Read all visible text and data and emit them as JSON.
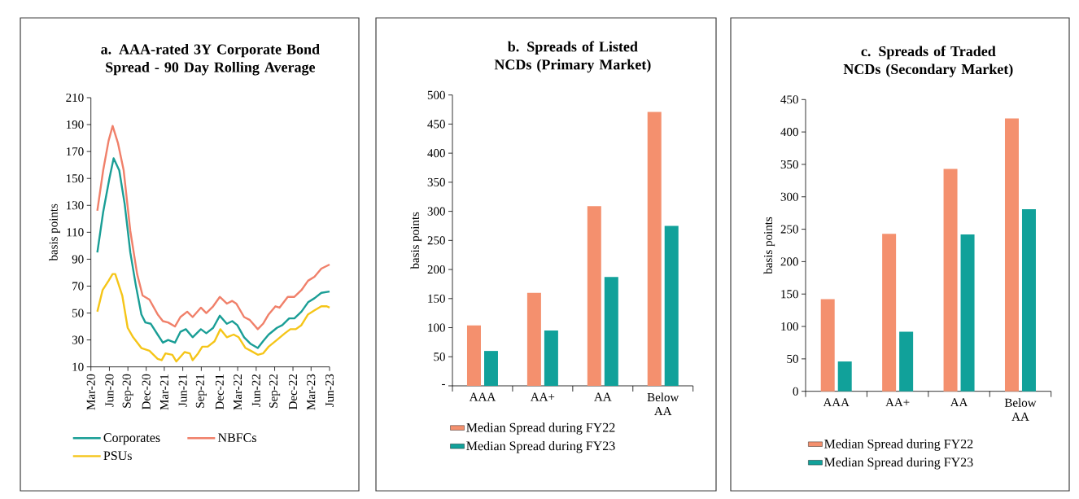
{
  "chart_data": [
    {
      "type": "line",
      "title": "a. AAA-rated 3Y Corporate Bond Spread - 90 Day Rolling Average",
      "ylabel": "basis points",
      "xlim": [
        "2020-03",
        "2023-06"
      ],
      "ylim": [
        10,
        210
      ],
      "yticks": [
        10,
        30,
        50,
        70,
        90,
        110,
        130,
        150,
        170,
        190,
        210
      ],
      "xticks": [
        {
          "value": "2020-03",
          "label": "Mar-20"
        },
        {
          "value": "2020-06",
          "label": "Jun-20"
        },
        {
          "value": "2020-09",
          "label": "Sep-20"
        },
        {
          "value": "2020-12",
          "label": "Dec-20"
        },
        {
          "value": "2021-03",
          "label": "Mar-21"
        },
        {
          "value": "2021-06",
          "label": "Jun-21"
        },
        {
          "value": "2021-09",
          "label": "Sep-21"
        },
        {
          "value": "2021-12",
          "label": "Dec-21"
        },
        {
          "value": "2022-03",
          "label": "Mar-22"
        },
        {
          "value": "2022-06",
          "label": "Jun-22"
        },
        {
          "value": "2022-09",
          "label": "Sep-22"
        },
        {
          "value": "2022-12",
          "label": "Dec-22"
        },
        {
          "value": "2023-03",
          "label": "Mar-23"
        },
        {
          "value": "2023-06",
          "label": "Jun-23"
        }
      ],
      "legend": "bottom",
      "series": [
        {
          "name": "Corporates",
          "color": "#1a9e96",
          "x": [
            "2020-04-02",
            "2020-05-01",
            "2020-06-01",
            "2020-06-22",
            "2020-07-20",
            "2020-08-16",
            "2020-09-13",
            "2020-10-10",
            "2020-11-07",
            "2020-11-27",
            "2020-12-24",
            "2021-01-27",
            "2021-02-22",
            "2021-03-20",
            "2021-04-23",
            "2021-05-20",
            "2021-06-16",
            "2021-07-20",
            "2021-08-30",
            "2021-09-26",
            "2021-10-30",
            "2021-12-02",
            "2022-01-06",
            "2022-02-02",
            "2022-02-27",
            "2022-04-02",
            "2022-05-05",
            "2022-06-09",
            "2022-07-05",
            "2022-08-02",
            "2022-09-12",
            "2022-10-09",
            "2022-11-12",
            "2022-12-08",
            "2023-01-12",
            "2023-02-14",
            "2023-03-18",
            "2023-04-21",
            "2023-06-01"
          ],
          "values": [
            95,
            125,
            150,
            165,
            156,
            131,
            95,
            71,
            49,
            43,
            42,
            34,
            28,
            30,
            28,
            36,
            38,
            32,
            38,
            35,
            39,
            48,
            42,
            44,
            41,
            32,
            27,
            24,
            29,
            34,
            39,
            41,
            46,
            46,
            51,
            58,
            61,
            65,
            66
          ]
        },
        {
          "name": "NBFCs",
          "color": "#f0806a",
          "x": [
            "2020-04-02",
            "2020-05-01",
            "2020-05-28",
            "2020-06-17",
            "2020-07-14",
            "2020-08-11",
            "2020-09-13",
            "2020-10-17",
            "2020-11-13",
            "2020-12-17",
            "2021-01-27",
            "2021-02-22",
            "2021-03-20",
            "2021-04-23",
            "2021-05-20",
            "2021-06-23",
            "2021-07-20",
            "2021-08-30",
            "2021-09-26",
            "2021-10-30",
            "2021-12-02",
            "2022-01-06",
            "2022-02-02",
            "2022-02-22",
            "2022-04-02",
            "2022-04-29",
            "2022-06-09",
            "2022-07-05",
            "2022-08-02",
            "2022-09-05",
            "2022-09-25",
            "2022-11-05",
            "2022-12-08",
            "2023-01-12",
            "2023-02-14",
            "2023-03-18",
            "2023-04-21",
            "2023-06-01"
          ],
          "values": [
            126,
            156,
            178,
            189,
            176,
            156,
            111,
            79,
            63,
            60,
            49,
            44,
            43,
            40,
            47,
            51,
            47,
            54,
            50,
            55,
            62,
            57,
            59,
            57,
            47,
            45,
            38,
            42,
            49,
            55,
            54,
            62,
            62,
            67,
            74,
            77,
            83,
            86
          ]
        },
        {
          "name": "PSUs",
          "color": "#f5c518",
          "x": [
            "2020-04-02",
            "2020-04-28",
            "2020-05-28",
            "2020-06-17",
            "2020-06-30",
            "2020-08-04",
            "2020-08-31",
            "2020-09-27",
            "2020-11-07",
            "2020-12-17",
            "2021-01-27",
            "2021-02-16",
            "2021-03-07",
            "2021-04-10",
            "2021-04-30",
            "2021-06-10",
            "2021-07-06",
            "2021-07-20",
            "2021-08-16",
            "2021-09-06",
            "2021-10-03",
            "2021-11-06",
            "2021-12-05",
            "2022-01-06",
            "2022-02-09",
            "2022-03-06",
            "2022-04-09",
            "2022-05-05",
            "2022-06-09",
            "2022-07-05",
            "2022-08-02",
            "2022-09-12",
            "2022-10-22",
            "2022-11-18",
            "2022-12-15",
            "2023-01-12",
            "2023-02-14",
            "2023-03-18",
            "2023-04-21",
            "2023-05-18",
            "2023-06-01"
          ],
          "values": [
            51,
            67,
            74,
            79,
            79,
            63,
            39,
            32,
            24,
            22,
            16,
            15,
            20,
            19,
            14,
            21,
            20,
            15,
            20,
            25,
            25,
            29,
            38,
            32,
            34,
            32,
            24,
            22,
            19,
            20,
            25,
            30,
            35,
            38,
            38,
            41,
            49,
            52,
            55,
            55,
            54
          ]
        }
      ]
    },
    {
      "type": "bar",
      "title": "b. Spreads of Listed NCDs (Primary Market)",
      "ylabel": "basis points",
      "categories": [
        "AAA",
        "AA+",
        "AA",
        "Below AA"
      ],
      "ylim": [
        0,
        500
      ],
      "yticks": [
        {
          "value": 0,
          "label": "-"
        },
        50,
        100,
        150,
        200,
        250,
        300,
        350,
        400,
        450,
        500
      ],
      "legend": "bottom",
      "series": [
        {
          "name": "Median Spread during FY22",
          "color": "#f4906e",
          "values": [
            104,
            160,
            309,
            471
          ]
        },
        {
          "name": "Median Spread during FY23",
          "color": "#11a19a",
          "values": [
            60,
            95,
            187,
            275
          ]
        }
      ]
    },
    {
      "type": "bar",
      "title": "c. Spreads of Traded NCDs (Secondary Market)",
      "ylabel": "basis points",
      "categories": [
        "AAA",
        "AA+",
        "AA",
        "Below AA"
      ],
      "ylim": [
        0,
        450
      ],
      "yticks": [
        0,
        50,
        100,
        150,
        200,
        250,
        300,
        350,
        400,
        450
      ],
      "legend": "bottom",
      "series": [
        {
          "name": "Median Spread during FY22",
          "color": "#f4906e",
          "values": [
            142,
            243,
            343,
            421
          ]
        },
        {
          "name": "Median Spread during FY23",
          "color": "#11a19a",
          "values": [
            46,
            92,
            242,
            281
          ]
        }
      ]
    }
  ]
}
